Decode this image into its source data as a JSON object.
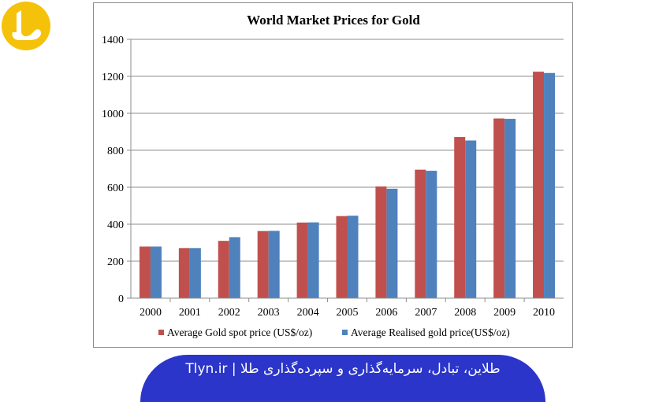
{
  "site": {
    "logo_icon": "tlyn-logo-icon",
    "logo_color": "#f5c20b",
    "banner_text": "Tlyn.ir | طلاین، تبادل، سرمایه‌گذاری و سپرده‌گذاری طلا",
    "banner_color": "#2b35c9"
  },
  "chart_data": {
    "type": "bar",
    "title": "World Market Prices for Gold",
    "xlabel": "",
    "ylabel": "",
    "categories": [
      "2000",
      "2001",
      "2002",
      "2003",
      "2004",
      "2005",
      "2006",
      "2007",
      "2008",
      "2009",
      "2010"
    ],
    "series": [
      {
        "name": "Average Gold spot price (US$/oz)",
        "color": "#c0504d",
        "values": [
          279,
          271,
          310,
          363,
          409,
          444,
          604,
          695,
          872,
          972,
          1225
        ]
      },
      {
        "name": "Average Realised gold price(US$/oz)",
        "color": "#4f81bd",
        "values": [
          279,
          271,
          330,
          364,
          410,
          446,
          592,
          689,
          853,
          970,
          1218
        ]
      }
    ],
    "ylim": [
      0,
      1400
    ],
    "yticks": [
      0,
      200,
      400,
      600,
      800,
      1000,
      1200,
      1400
    ],
    "grid": true,
    "legend": "bottom"
  }
}
